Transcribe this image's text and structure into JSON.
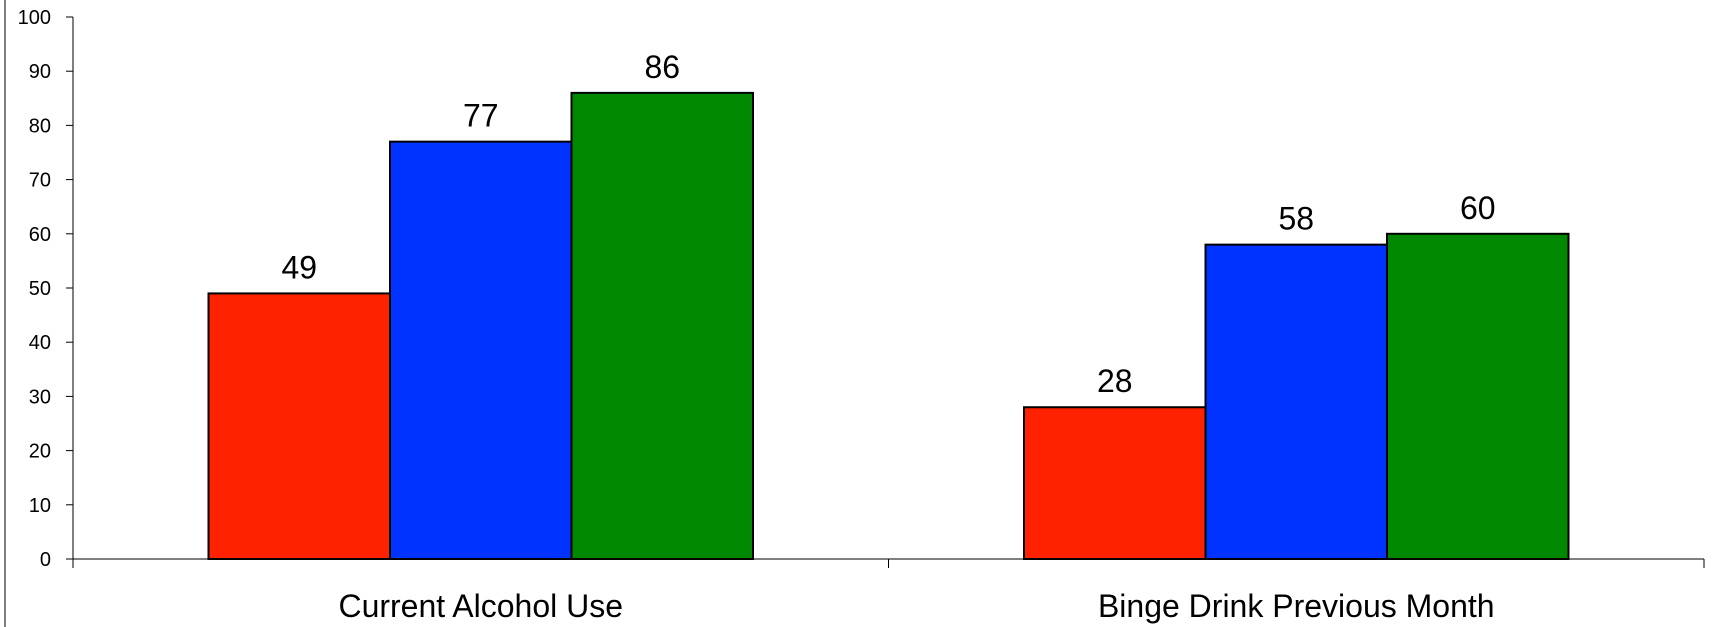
{
  "chart_data": {
    "type": "bar",
    "title": "",
    "xlabel": "",
    "ylabel": "",
    "categories": [
      "Current Alcohol Use",
      "Binge Drink Previous Month"
    ],
    "series": [
      {
        "color": "#ff2200",
        "values": [
          49,
          28
        ]
      },
      {
        "color": "#0033ff",
        "values": [
          77,
          58
        ]
      },
      {
        "color": "#008800",
        "values": [
          86,
          60
        ]
      }
    ],
    "ylim": [
      0,
      100
    ],
    "yticks": [
      0,
      10,
      20,
      30,
      40,
      50,
      60,
      70,
      80,
      90,
      100
    ],
    "grid": false,
    "legend": "none"
  }
}
